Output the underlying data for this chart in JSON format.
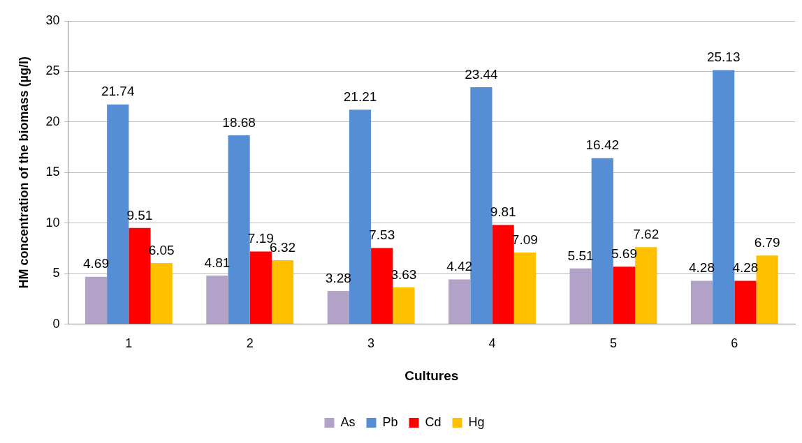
{
  "chart_data": {
    "type": "bar",
    "xlabel": "Cultures",
    "ylabel": "HM concentration of the biomass (µg/l)",
    "categories": [
      "1",
      "2",
      "3",
      "4",
      "5",
      "6"
    ],
    "series": [
      {
        "name": "As",
        "color": "#b3a2c7",
        "values": [
          4.69,
          4.81,
          3.28,
          4.42,
          5.51,
          4.28
        ]
      },
      {
        "name": "Pb",
        "color": "#558ed5",
        "values": [
          21.74,
          18.68,
          21.21,
          23.44,
          16.42,
          25.13
        ]
      },
      {
        "name": "Cd",
        "color": "#ff0000",
        "values": [
          9.51,
          7.19,
          7.53,
          9.81,
          5.69,
          4.28
        ]
      },
      {
        "name": "Hg",
        "color": "#ffc000",
        "values": [
          6.05,
          6.32,
          3.63,
          7.09,
          7.62,
          6.79
        ]
      }
    ],
    "ylim": [
      0,
      30
    ],
    "yticks": [
      0,
      5,
      10,
      15,
      20,
      25,
      30
    ],
    "grid": "y",
    "legend": "bottom",
    "data_labels": true
  }
}
